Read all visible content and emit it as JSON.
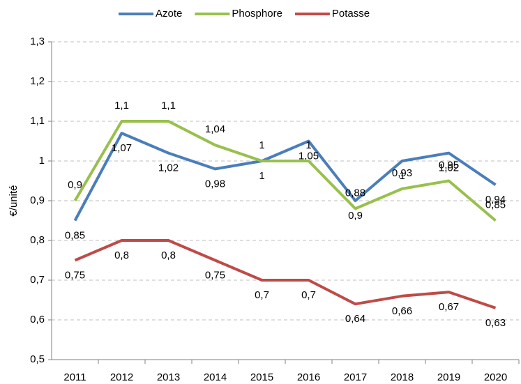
{
  "chart_data": {
    "type": "line",
    "y_label": "€/unité",
    "categories": [
      "2011",
      "2012",
      "2013",
      "2014",
      "2015",
      "2016",
      "2017",
      "2018",
      "2019",
      "2020"
    ],
    "series": [
      {
        "name": "Azote",
        "color": "#4a7ebb",
        "values": [
          0.85,
          1.07,
          1.02,
          0.98,
          1,
          1.05,
          0.9,
          1,
          1.02,
          0.94
        ],
        "value_labels": [
          "0,85",
          "1,07",
          "1,02",
          "0,98",
          "1",
          "1,05",
          "0,9",
          "1",
          "1,02",
          "0,94"
        ]
      },
      {
        "name": "Phosphore",
        "color": "#98c04c",
        "values": [
          0.9,
          1.1,
          1.1,
          1.04,
          1,
          1,
          0.88,
          0.93,
          0.95,
          0.85
        ],
        "value_labels": [
          "0,9",
          "1,1",
          "1,1",
          "1,04",
          "1",
          "1",
          "0,88",
          "0,93",
          "0,95",
          "0,85"
        ]
      },
      {
        "name": "Potasse",
        "color": "#be4b48",
        "values": [
          0.75,
          0.8,
          0.8,
          0.75,
          0.7,
          0.7,
          0.64,
          0.66,
          0.67,
          0.63
        ],
        "value_labels": [
          "0,75",
          "0,8",
          "0,8",
          "0,75",
          "0,7",
          "0,7",
          "0,64",
          "0,66",
          "0,67",
          "0,63"
        ]
      }
    ],
    "ylim": [
      0.5,
      1.3
    ],
    "yticks": [
      {
        "value": 0.5,
        "label": "0,5"
      },
      {
        "value": 0.6,
        "label": "0,6"
      },
      {
        "value": 0.7,
        "label": "0,7"
      },
      {
        "value": 0.8,
        "label": "0,8"
      },
      {
        "value": 0.9,
        "label": "0,9"
      },
      1,
      {
        "value": 1.1,
        "label": "1,1"
      },
      {
        "value": 1.2,
        "label": "1,2"
      },
      {
        "value": 1.3,
        "label": "1,3"
      }
    ],
    "grid": true,
    "legend": "top"
  }
}
